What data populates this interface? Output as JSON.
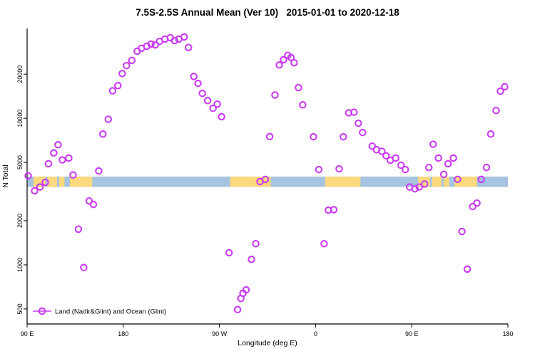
{
  "chart_data": {
    "type": "scatter",
    "title": "7.5S-2.5S Annual Mean (Ver 10)   2015-01-01 to 2020-12-18",
    "xlabel": "Longitude (deg E)",
    "ylabel": "N Total",
    "y_scale": "log",
    "xlim": [
      90,
      540
    ],
    "ylim": [
      395,
      41000
    ],
    "x_ticks": [
      {
        "v": 90,
        "label": "90 E"
      },
      {
        "v": 180,
        "label": "180"
      },
      {
        "v": 270,
        "label": "90 W"
      },
      {
        "v": 360,
        "label": "0"
      },
      {
        "v": 450,
        "label": "90 E"
      },
      {
        "v": 540,
        "label": "180"
      }
    ],
    "y_ticks": [
      500,
      1000,
      2000,
      5000,
      10000,
      20000
    ],
    "legend": "Land (Nadir&Glint) and Ocean (Glint)",
    "point_color": "#c93cf2",
    "map_strip": {
      "ocean_color": "#a6c3e0",
      "land_color": "#fdd87e",
      "n_top": 4000,
      "n_bottom": 3400,
      "land_segments": [
        [
          96,
          107
        ],
        [
          109,
          118
        ],
        [
          120,
          125
        ],
        [
          130,
          151
        ],
        [
          280,
          318
        ],
        [
          369,
          402
        ],
        [
          456,
          467
        ],
        [
          469,
          478
        ],
        [
          480,
          485
        ],
        [
          490,
          511
        ]
      ]
    },
    "points": [
      [
        91,
        4050
      ],
      [
        97,
        3200
      ],
      [
        102,
        3400
      ],
      [
        107,
        3650
      ],
      [
        110,
        4900
      ],
      [
        115,
        5800
      ],
      [
        119,
        6600
      ],
      [
        123,
        5200
      ],
      [
        129,
        5350
      ],
      [
        133,
        4100
      ],
      [
        138,
        1750
      ],
      [
        143,
        960
      ],
      [
        148,
        2730
      ],
      [
        152,
        2580
      ],
      [
        157,
        4370
      ],
      [
        161,
        7800
      ],
      [
        166,
        9850
      ],
      [
        170,
        15400
      ],
      [
        175,
        16700
      ],
      [
        179,
        20200
      ],
      [
        183,
        22900
      ],
      [
        188,
        24800
      ],
      [
        193,
        28700
      ],
      [
        197,
        30000
      ],
      [
        202,
        31000
      ],
      [
        206,
        32100
      ],
      [
        210,
        31700
      ],
      [
        214,
        33500
      ],
      [
        219,
        34700
      ],
      [
        224,
        35500
      ],
      [
        228,
        33900
      ],
      [
        232,
        34700
      ],
      [
        237,
        35900
      ],
      [
        241,
        30400
      ],
      [
        246,
        19300
      ],
      [
        250,
        17300
      ],
      [
        254,
        14800
      ],
      [
        259,
        13200
      ],
      [
        264,
        11700
      ],
      [
        268,
        12500
      ],
      [
        272,
        10250
      ],
      [
        279,
        1210
      ],
      [
        287,
        495
      ],
      [
        290,
        590
      ],
      [
        292,
        640
      ],
      [
        295,
        675
      ],
      [
        300,
        1090
      ],
      [
        304,
        1395
      ],
      [
        308,
        3700
      ],
      [
        313,
        3830
      ],
      [
        317,
        7500
      ],
      [
        322,
        14400
      ],
      [
        326,
        23100
      ],
      [
        330,
        25100
      ],
      [
        334,
        26900
      ],
      [
        337,
        26000
      ],
      [
        340,
        23900
      ],
      [
        344,
        16200
      ],
      [
        348,
        12350
      ],
      [
        358,
        7480
      ],
      [
        363,
        4470
      ],
      [
        368,
        1395
      ],
      [
        372,
        2360
      ],
      [
        377,
        2380
      ],
      [
        382,
        4520
      ],
      [
        386,
        7480
      ],
      [
        391,
        10900
      ],
      [
        396,
        11000
      ],
      [
        400,
        9250
      ],
      [
        404,
        8000
      ],
      [
        413,
        6450
      ],
      [
        417,
        6100
      ],
      [
        422,
        5950
      ],
      [
        426,
        5550
      ],
      [
        430,
        5170
      ],
      [
        435,
        5350
      ],
      [
        440,
        4780
      ],
      [
        444,
        4470
      ],
      [
        448,
        3400
      ],
      [
        453,
        3300
      ],
      [
        457,
        3400
      ],
      [
        462,
        3560
      ],
      [
        466,
        4620
      ],
      [
        470,
        6650
      ],
      [
        475,
        5350
      ],
      [
        480,
        4150
      ],
      [
        484,
        4900
      ],
      [
        489,
        5350
      ],
      [
        493,
        3830
      ],
      [
        497,
        1690
      ],
      [
        502,
        935
      ],
      [
        507,
        2500
      ],
      [
        511,
        2640
      ],
      [
        515,
        3830
      ],
      [
        520,
        4620
      ],
      [
        524,
        7800
      ],
      [
        529,
        11300
      ],
      [
        533,
        15300
      ],
      [
        537,
        16400
      ]
    ]
  }
}
